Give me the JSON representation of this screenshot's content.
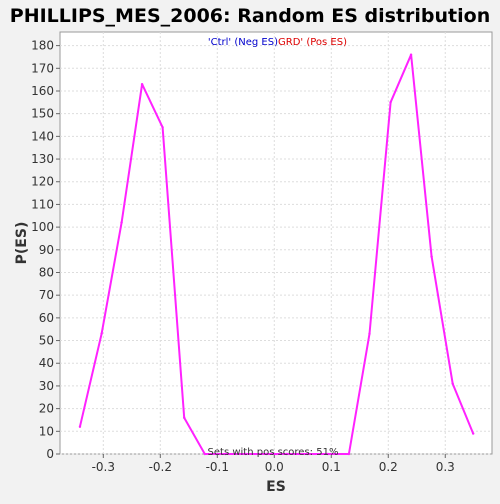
{
  "chart_data": {
    "type": "line",
    "title": "PHILLIPS_MES_2006: Random ES distribution",
    "xlabel": "ES",
    "ylabel": "P(ES)",
    "xlim": [
      -0.376,
      0.382
    ],
    "ylim": [
      0,
      186
    ],
    "x_ticks": [
      -0.3,
      -0.2,
      -0.1,
      0.0,
      0.1,
      0.2,
      0.3
    ],
    "x_tick_labels": [
      "-0.3",
      "-0.2",
      "-0.1",
      "0.0",
      "0.1",
      "0.2",
      "0.3"
    ],
    "y_ticks": [
      0,
      10,
      20,
      30,
      40,
      50,
      60,
      70,
      80,
      90,
      100,
      110,
      120,
      130,
      140,
      150,
      160,
      170,
      180
    ],
    "y_tick_labels": [
      "0",
      "10",
      "20",
      "30",
      "40",
      "50",
      "60",
      "70",
      "80",
      "90",
      "100",
      "110",
      "120",
      "130",
      "140",
      "150",
      "160",
      "170",
      "180"
    ],
    "grid": true,
    "legend": {
      "placement": "top-center",
      "entries": [
        {
          "label": "'Ctrl' (Neg ES)",
          "color": "#0000cc"
        },
        {
          "label": "GRD' (Pos ES)",
          "color": "#dd0000"
        }
      ]
    },
    "annotation": "Sets with pos scores: 51%",
    "line_color": "#ff22ff",
    "series": [
      {
        "x": [
          -0.341,
          -0.303,
          -0.268,
          -0.232,
          -0.196,
          -0.158,
          -0.122,
          -0.086,
          -0.05,
          -0.014,
          0.022,
          0.058,
          0.094,
          0.131,
          0.167,
          0.204,
          0.24,
          0.276,
          0.313,
          0.349
        ],
        "values": [
          12,
          53,
          102,
          163,
          144,
          16,
          0,
          0,
          0,
          0,
          0,
          0,
          0,
          0,
          53,
          155,
          176,
          87,
          31,
          9
        ]
      }
    ]
  }
}
